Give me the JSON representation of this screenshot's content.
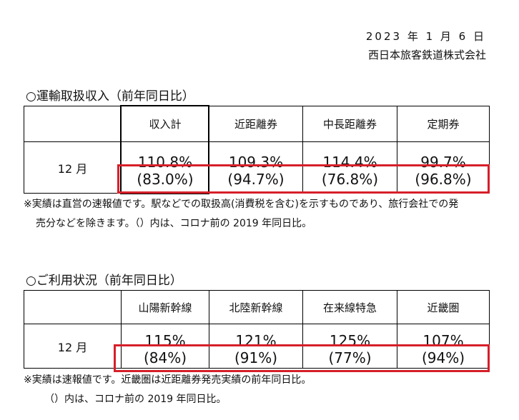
{
  "header": {
    "date": "2023 年 1 月 6 日",
    "company": "西日本旅客鉄道株式会社"
  },
  "revenue": {
    "title": "○運輸取扱収入（前年同日比）",
    "columns": [
      "収入計",
      "近距離券",
      "中長距離券",
      "定期券"
    ],
    "row_label": "12 月",
    "values": [
      "110.8%",
      "109.3%",
      "114.4%",
      "99.7%"
    ],
    "pre_covid_values": [
      "(83.0%)",
      "(94.7%)",
      "(76.8%)",
      "(96.8%)"
    ],
    "note_lines": [
      "※実績は直営の速報値です。駅などでの取扱高(消費税を含む)を示すものであり、旅行会社での発",
      "売分などを除きます。（）内は、コロナ前の 2019 年同日比。"
    ]
  },
  "usage": {
    "title": "○ご利用状況（前年同日比）",
    "columns": [
      "山陽新幹線",
      "北陸新幹線",
      "在来線特急",
      "近畿圏"
    ],
    "row_label": "12 月",
    "values": [
      "115%",
      "121%",
      "125%",
      "107%"
    ],
    "pre_covid_values": [
      "(84%)",
      "(91%)",
      "(77%)",
      "(94%)"
    ],
    "note_lines": [
      "※実績は速報値です。近畿圏は近距離券発売実績の前年同日比。",
      "（）内は、コロナ前の 2019 年同日比。"
    ]
  },
  "highlight_color": "#d61f2a"
}
